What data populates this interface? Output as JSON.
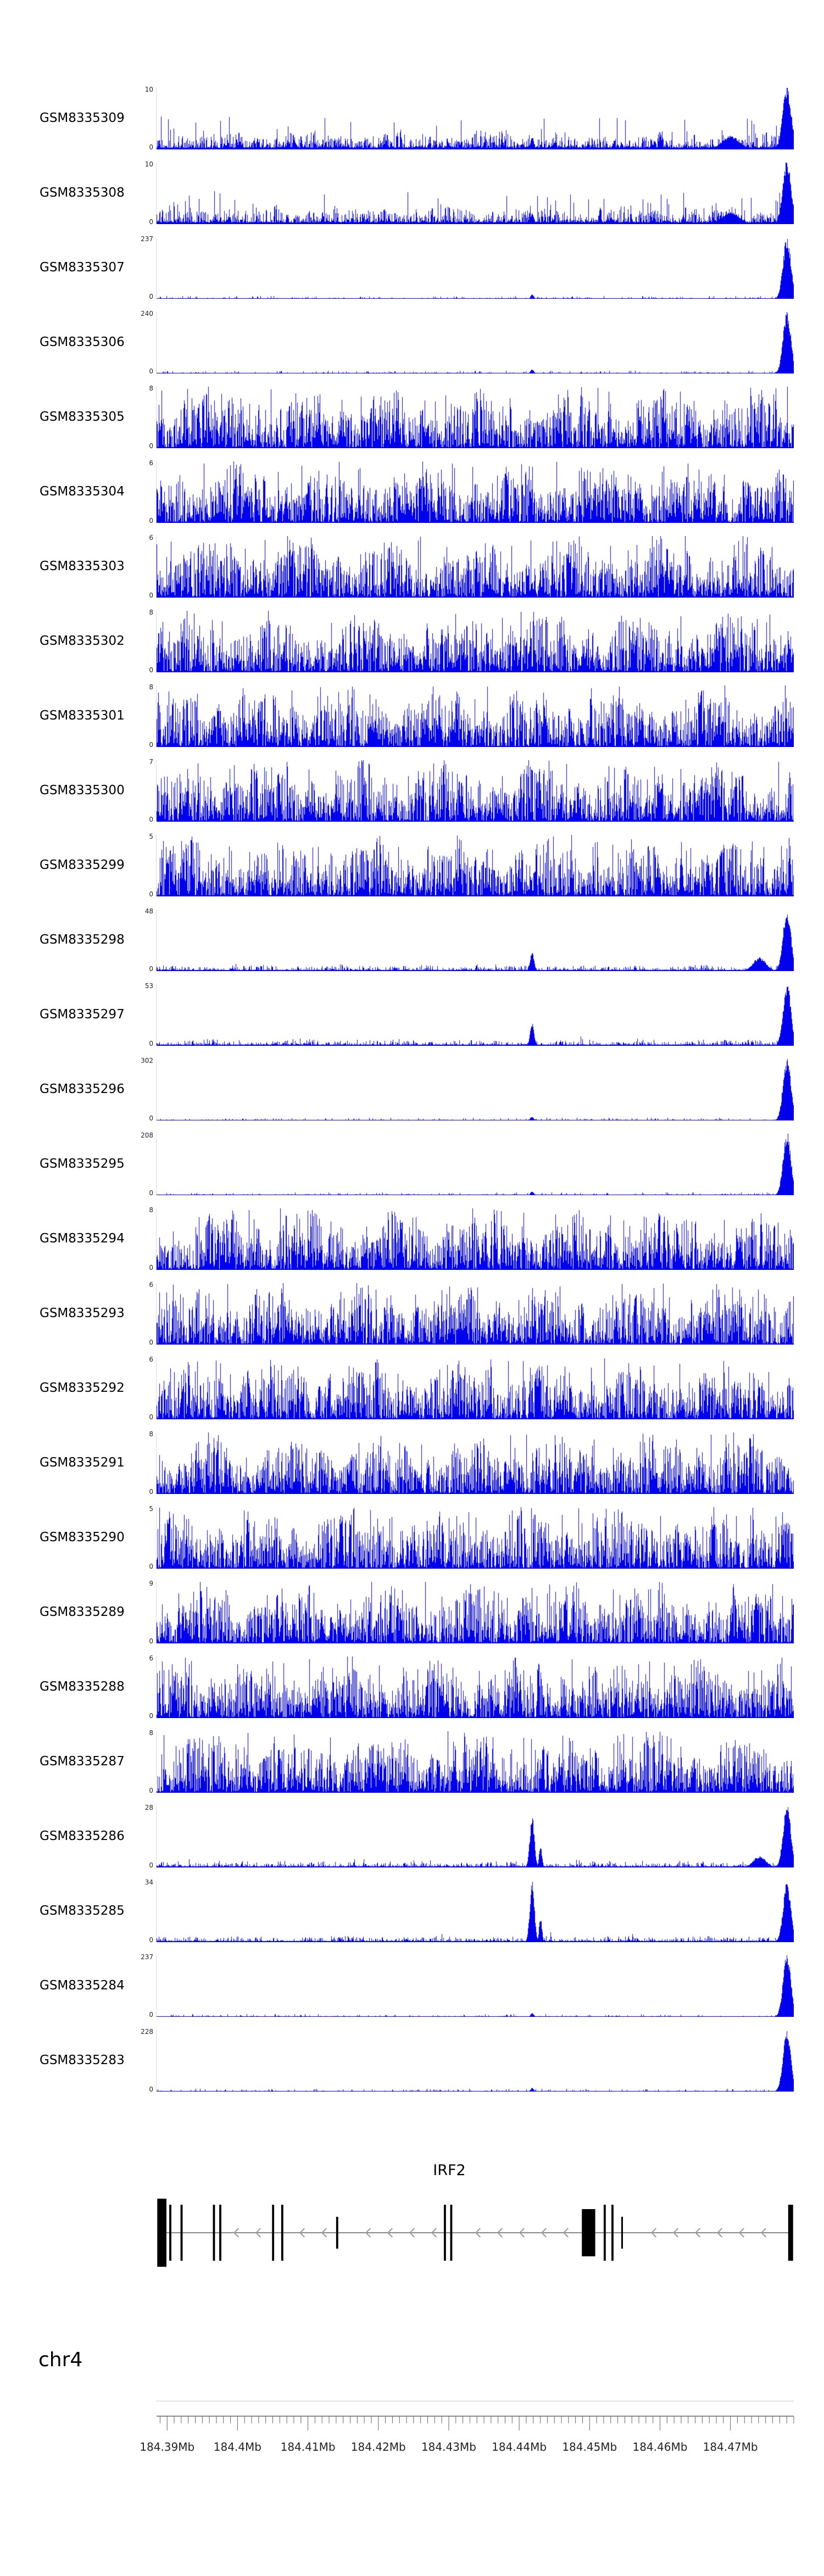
{
  "figure": {
    "background": "#ffffff",
    "signal_color": "#0000ee",
    "gene_color": "#000000",
    "intron_color": "#888888",
    "arrow_color": "#9a9a9a",
    "axis_color": "#666666"
  },
  "chart_data": {
    "type": "area",
    "subtype": "genome-browser-coverage-tracks",
    "title": "",
    "region": {
      "chromosome": "chr4",
      "start_mb": 184.3885,
      "end_mb": 184.479,
      "unit": "Mb"
    },
    "grid": false,
    "tracks": [
      {
        "sample": "GSM8335309",
        "ymin": 0,
        "ymax": 10,
        "pattern": "sparse",
        "seed": 309,
        "peaks": [
          {
            "mb": 184.4418,
            "amp": 0.2,
            "w_mb": 0.00025
          },
          {
            "mb": 184.47,
            "amp": 0.22,
            "w_mb": 0.0012
          },
          {
            "mb": 184.478,
            "amp": 1.0,
            "w_mb": 0.0006
          }
        ]
      },
      {
        "sample": "GSM8335308",
        "ymin": 0,
        "ymax": 10,
        "pattern": "sparse",
        "seed": 308,
        "peaks": [
          {
            "mb": 184.4418,
            "amp": 0.18,
            "w_mb": 0.00025
          },
          {
            "mb": 184.47,
            "amp": 0.2,
            "w_mb": 0.0012
          },
          {
            "mb": 184.478,
            "amp": 1.0,
            "w_mb": 0.0006
          }
        ]
      },
      {
        "sample": "GSM8335307",
        "ymin": 0,
        "ymax": 237,
        "pattern": "flat",
        "seed": 307,
        "peaks": [
          {
            "mb": 184.4418,
            "amp": 0.07,
            "w_mb": 0.00022
          },
          {
            "mb": 184.478,
            "amp": 1.0,
            "w_mb": 0.00055
          }
        ]
      },
      {
        "sample": "GSM8335306",
        "ymin": 0,
        "ymax": 240,
        "pattern": "flat",
        "seed": 306,
        "peaks": [
          {
            "mb": 184.4418,
            "amp": 0.07,
            "w_mb": 0.00022
          },
          {
            "mb": 184.478,
            "amp": 1.0,
            "w_mb": 0.00055
          }
        ]
      },
      {
        "sample": "GSM8335305",
        "ymin": 0,
        "ymax": 8,
        "pattern": "dense",
        "seed": 305,
        "peaks": []
      },
      {
        "sample": "GSM8335304",
        "ymin": 0,
        "ymax": 6,
        "pattern": "dense",
        "seed": 304,
        "peaks": []
      },
      {
        "sample": "GSM8335303",
        "ymin": 0,
        "ymax": 6,
        "pattern": "dense",
        "seed": 303,
        "peaks": []
      },
      {
        "sample": "GSM8335302",
        "ymin": 0,
        "ymax": 8,
        "pattern": "dense",
        "seed": 302,
        "peaks": []
      },
      {
        "sample": "GSM8335301",
        "ymin": 0,
        "ymax": 8,
        "pattern": "dense",
        "seed": 301,
        "peaks": []
      },
      {
        "sample": "GSM8335300",
        "ymin": 0,
        "ymax": 7,
        "pattern": "dense",
        "seed": 300,
        "peaks": []
      },
      {
        "sample": "GSM8335299",
        "ymin": 0,
        "ymax": 5,
        "pattern": "dense",
        "seed": 299,
        "peaks": []
      },
      {
        "sample": "GSM8335298",
        "ymin": 0,
        "ymax": 48,
        "pattern": "low",
        "seed": 298,
        "peaks": [
          {
            "mb": 184.4418,
            "amp": 0.3,
            "w_mb": 0.00028
          },
          {
            "mb": 184.4741,
            "amp": 0.22,
            "w_mb": 0.0009
          },
          {
            "mb": 184.478,
            "amp": 1.0,
            "w_mb": 0.00055
          }
        ]
      },
      {
        "sample": "GSM8335297",
        "ymin": 0,
        "ymax": 53,
        "pattern": "low",
        "seed": 297,
        "peaks": [
          {
            "mb": 184.4418,
            "amp": 0.35,
            "w_mb": 0.00028
          },
          {
            "mb": 184.478,
            "amp": 1.0,
            "w_mb": 0.00055
          }
        ]
      },
      {
        "sample": "GSM8335296",
        "ymin": 0,
        "ymax": 302,
        "pattern": "flat",
        "seed": 296,
        "peaks": [
          {
            "mb": 184.4418,
            "amp": 0.06,
            "w_mb": 0.00022
          },
          {
            "mb": 184.478,
            "amp": 1.0,
            "w_mb": 0.00055
          }
        ]
      },
      {
        "sample": "GSM8335295",
        "ymin": 0,
        "ymax": 208,
        "pattern": "flat",
        "seed": 295,
        "peaks": [
          {
            "mb": 184.4418,
            "amp": 0.06,
            "w_mb": 0.00022
          },
          {
            "mb": 184.478,
            "amp": 1.0,
            "w_mb": 0.00055
          }
        ]
      },
      {
        "sample": "GSM8335294",
        "ymin": 0,
        "ymax": 8,
        "pattern": "dense",
        "seed": 294,
        "peaks": []
      },
      {
        "sample": "GSM8335293",
        "ymin": 0,
        "ymax": 6,
        "pattern": "dense",
        "seed": 293,
        "peaks": []
      },
      {
        "sample": "GSM8335292",
        "ymin": 0,
        "ymax": 6,
        "pattern": "dense",
        "seed": 292,
        "peaks": []
      },
      {
        "sample": "GSM8335291",
        "ymin": 0,
        "ymax": 8,
        "pattern": "dense",
        "seed": 291,
        "peaks": []
      },
      {
        "sample": "GSM8335290",
        "ymin": 0,
        "ymax": 5,
        "pattern": "dense",
        "seed": 290,
        "peaks": []
      },
      {
        "sample": "GSM8335289",
        "ymin": 0,
        "ymax": 9,
        "pattern": "dense",
        "seed": 289,
        "peaks": []
      },
      {
        "sample": "GSM8335288",
        "ymin": 0,
        "ymax": 6,
        "pattern": "dense",
        "seed": 288,
        "peaks": []
      },
      {
        "sample": "GSM8335287",
        "ymin": 0,
        "ymax": 8,
        "pattern": "dense",
        "seed": 287,
        "peaks": []
      },
      {
        "sample": "GSM8335286",
        "ymin": 0,
        "ymax": 28,
        "pattern": "low",
        "seed": 286,
        "peaks": [
          {
            "mb": 184.4418,
            "amp": 0.82,
            "w_mb": 0.00032
          },
          {
            "mb": 184.443,
            "amp": 0.35,
            "w_mb": 0.0002
          },
          {
            "mb": 184.4741,
            "amp": 0.18,
            "w_mb": 0.0009
          },
          {
            "mb": 184.478,
            "amp": 1.0,
            "w_mb": 0.00055
          }
        ]
      },
      {
        "sample": "GSM8335285",
        "ymin": 0,
        "ymax": 34,
        "pattern": "low",
        "seed": 285,
        "peaks": [
          {
            "mb": 184.4418,
            "amp": 1.0,
            "w_mb": 0.00032
          },
          {
            "mb": 184.443,
            "amp": 0.4,
            "w_mb": 0.0002
          },
          {
            "mb": 184.478,
            "amp": 0.95,
            "w_mb": 0.00055
          }
        ]
      },
      {
        "sample": "GSM8335284",
        "ymin": 0,
        "ymax": 237,
        "pattern": "flat",
        "seed": 284,
        "peaks": [
          {
            "mb": 184.4418,
            "amp": 0.06,
            "w_mb": 0.00022
          },
          {
            "mb": 184.478,
            "amp": 1.0,
            "w_mb": 0.00055
          }
        ]
      },
      {
        "sample": "GSM8335283",
        "ymin": 0,
        "ymax": 228,
        "pattern": "flat",
        "seed": 283,
        "peaks": [
          {
            "mb": 184.4418,
            "amp": 0.06,
            "w_mb": 0.00022
          },
          {
            "mb": 184.478,
            "amp": 1.0,
            "w_mb": 0.00055
          }
        ]
      }
    ],
    "gene_track": {
      "gene": "IRF2",
      "strand": "-",
      "exons_mb": [
        [
          184.3886,
          184.3899,
          124
        ],
        [
          184.3903,
          184.3906,
          102
        ],
        [
          184.3919,
          184.3922,
          102
        ],
        [
          184.3965,
          184.3968,
          102
        ],
        [
          184.3974,
          184.3977,
          102
        ],
        [
          184.4049,
          184.4052,
          102
        ],
        [
          184.4062,
          184.4065,
          102
        ],
        [
          184.414,
          184.4143,
          58
        ],
        [
          184.4293,
          184.4296,
          102
        ],
        [
          184.4302,
          184.4305,
          102
        ],
        [
          184.4489,
          184.4508,
          86
        ],
        [
          184.452,
          184.4523,
          102
        ],
        [
          184.4531,
          184.4534,
          102
        ],
        [
          184.4545,
          184.4547,
          58
        ],
        [
          184.4782,
          184.4789,
          102
        ]
      ]
    },
    "axis": {
      "chromosome": "chr4",
      "major_ticks_mb": [
        184.39,
        184.4,
        184.41,
        184.42,
        184.43,
        184.44,
        184.45,
        184.46,
        184.47
      ],
      "tick_labels": [
        "184.39Mb",
        "184.4Mb",
        "184.41Mb",
        "184.42Mb",
        "184.43Mb",
        "184.44Mb",
        "184.45Mb",
        "184.46Mb",
        "184.47Mb"
      ],
      "minor_tick_interval_mb": 0.001
    }
  }
}
